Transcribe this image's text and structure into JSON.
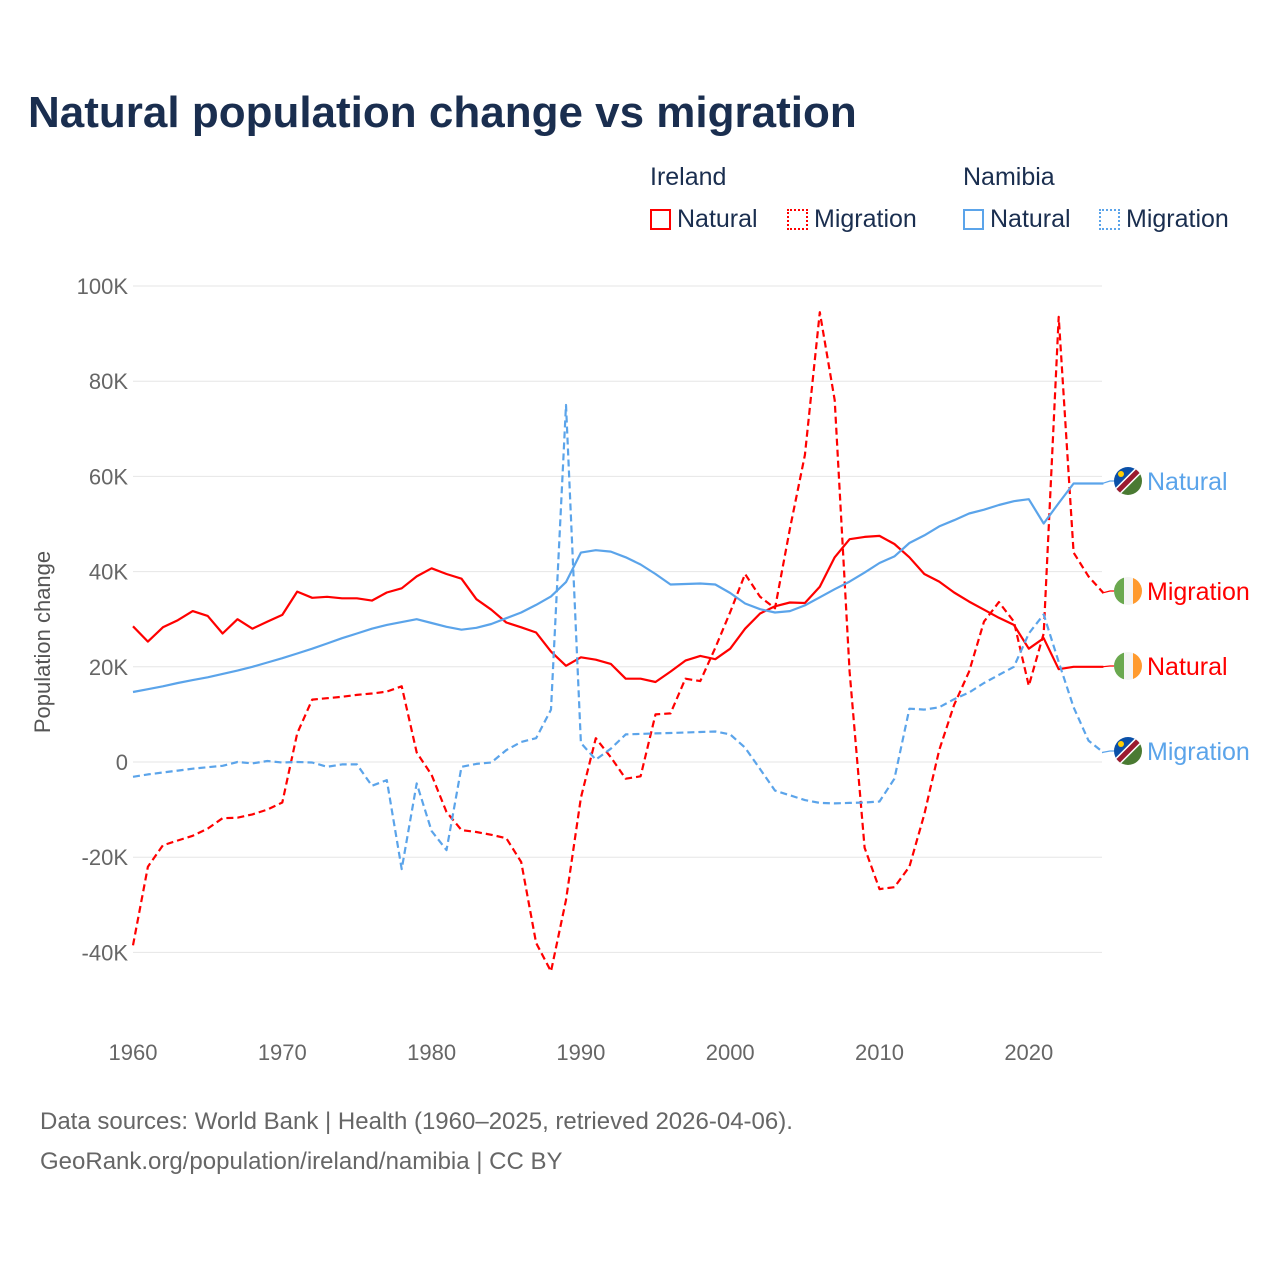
{
  "title": "Natural population change vs migration",
  "legend": {
    "groups": [
      {
        "name": "Ireland",
        "items": [
          {
            "label": "Natural",
            "style": "solid"
          },
          {
            "label": "Migration",
            "style": "dotted"
          }
        ],
        "color": "#ff0000"
      },
      {
        "name": "Namibia",
        "items": [
          {
            "label": "Natural",
            "style": "solid"
          },
          {
            "label": "Migration",
            "style": "dotted"
          }
        ],
        "color": "#5ba4ea"
      }
    ]
  },
  "footer": {
    "line1": "Data sources: World Bank | Health (1960–2025, retrieved 2026-04-06).",
    "line2": "GeoRank.org/population/ireland/namibia | CC BY"
  },
  "chart_data": {
    "type": "line",
    "title": "Natural population change vs migration",
    "xlabel": "",
    "ylabel": "Population change",
    "xlim": [
      1960,
      2025
    ],
    "ylim": [
      -50000,
      100000
    ],
    "x_ticks": [
      "1960",
      "1970",
      "1980",
      "1990",
      "2000",
      "2010",
      "2020"
    ],
    "y_ticks": [
      {
        "v": 100000,
        "label": "100K"
      },
      {
        "v": 80000,
        "label": "80K"
      },
      {
        "v": 60000,
        "label": "60K"
      },
      {
        "v": 40000,
        "label": "40K"
      },
      {
        "v": 20000,
        "label": "20K"
      },
      {
        "v": 0,
        "label": "0"
      },
      {
        "v": -20000,
        "label": "-20K"
      },
      {
        "v": -40000,
        "label": "-40K"
      }
    ],
    "grid": true,
    "legend_position": "top-right",
    "x_start": 1960,
    "series": [
      {
        "name": "Ireland Natural",
        "end_label": "Natural",
        "flag": "ireland",
        "color": "#ff0000",
        "dashed": false,
        "values": [
          28.5,
          25.3,
          28.3,
          29.8,
          31.7,
          30.7,
          27.0,
          30.0,
          28.0,
          29.5,
          30.9,
          35.8,
          34.5,
          34.7,
          34.4,
          34.4,
          33.9,
          35.6,
          36.5,
          39.0,
          40.7,
          39.5,
          38.5,
          34.2,
          32.0,
          29.3,
          28.3,
          27.2,
          23.2,
          20.2,
          22.0,
          21.5,
          20.6,
          17.5,
          17.5,
          16.8,
          19.0,
          21.3,
          22.3,
          21.6,
          23.8,
          28.0,
          31.2,
          32.7,
          33.5,
          33.4,
          36.8,
          43.0,
          46.8,
          47.3,
          47.5,
          45.8,
          43.0,
          39.5,
          37.9,
          35.6,
          33.7,
          32.0,
          30.3,
          28.8,
          23.8,
          26.0,
          19.5,
          20.0,
          20.0,
          20.0
        ]
      },
      {
        "name": "Ireland Migration",
        "end_label": "Migration",
        "flag": "ireland",
        "color": "#ff0000",
        "dashed": true,
        "values": [
          -38.5,
          -22,
          -17.5,
          -16.5,
          -15.5,
          -14,
          -11.8,
          -11.7,
          -11,
          -10,
          -8.5,
          6,
          13.1,
          13.4,
          13.7,
          14.1,
          14.4,
          14.8,
          15.9,
          2,
          -2.7,
          -10.5,
          -14.3,
          -14.7,
          -15.3,
          -16,
          -21,
          -38,
          -44,
          -29,
          -7.5,
          5,
          1,
          -3.5,
          -3,
          10,
          10.2,
          17.5,
          17,
          24,
          31.5,
          39.5,
          34.7,
          32.3,
          49,
          64.5,
          94.5,
          76,
          19,
          -18,
          -26.7,
          -26.3,
          -22,
          -11,
          2.5,
          12,
          19,
          29.5,
          33.6,
          29.5,
          16,
          27,
          93.5,
          44,
          39,
          35.5
        ]
      },
      {
        "name": "Namibia Natural",
        "end_label": "Natural",
        "flag": "namibia",
        "color": "#5ba4ea",
        "dashed": false,
        "values": [
          14.7,
          15.3,
          15.9,
          16.6,
          17.2,
          17.8,
          18.5,
          19.2,
          20.0,
          20.9,
          21.8,
          22.8,
          23.8,
          24.9,
          26.0,
          27.0,
          28.0,
          28.8,
          29.4,
          30.0,
          29.2,
          28.4,
          27.8,
          28.2,
          29.0,
          30.2,
          31.4,
          33.0,
          34.8,
          37.8,
          44.0,
          44.5,
          44.2,
          43.0,
          41.5,
          39.5,
          37.3,
          37.4,
          37.5,
          37.3,
          35.5,
          33.3,
          32.1,
          31.4,
          31.7,
          32.9,
          34.6,
          36.3,
          37.9,
          39.8,
          41.8,
          43.2,
          46.0,
          47.6,
          49.5,
          50.8,
          52.2,
          53.0,
          54.0,
          54.8,
          55.2,
          50.1,
          54.4,
          58.5,
          58.5,
          58.5
        ]
      },
      {
        "name": "Namibia Migration",
        "end_label": "Migration",
        "flag": "namibia",
        "color": "#5ba4ea",
        "dashed": true,
        "values": [
          -3.1,
          -2.6,
          -2.2,
          -1.8,
          -1.4,
          -1.1,
          -0.8,
          0,
          -0.3,
          0.2,
          -0.1,
          0,
          -0.1,
          -1,
          -0.5,
          -0.5,
          -5,
          -3.8,
          -22.5,
          -4.5,
          -14.5,
          -18.5,
          -1,
          -0.4,
          -0.1,
          2.5,
          4.2,
          5,
          11,
          75,
          4,
          0.5,
          2.8,
          5.8,
          5.9,
          6.0,
          6.1,
          6.2,
          6.3,
          6.4,
          5.8,
          3,
          -1.5,
          -6,
          -7,
          -8,
          -8.6,
          -8.7,
          -8.6,
          -8.5,
          -8.3,
          -3.5,
          11.2,
          11,
          11.5,
          13.2,
          14.6,
          16.6,
          18.3,
          20,
          27,
          31,
          21,
          11.5,
          4.5,
          2
        ]
      }
    ],
    "value_unit": "thousands"
  }
}
